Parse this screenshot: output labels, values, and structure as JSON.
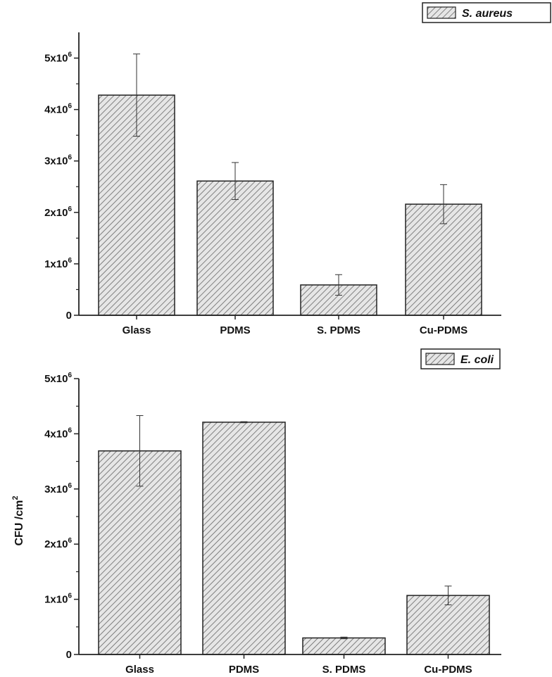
{
  "chart_data": [
    {
      "type": "bar",
      "categories": [
        "Glass",
        "PDMS",
        "S. PDMS",
        "Cu-PDMS"
      ],
      "series": [
        {
          "name": "S. aureus",
          "values": [
            4280000,
            2610000,
            590000,
            2160000
          ],
          "errors": [
            800000,
            360000,
            200000,
            380000
          ]
        }
      ],
      "ylim": [
        0,
        5500000
      ],
      "yticks": [
        {
          "value": 0,
          "label": "0"
        },
        {
          "value": 1000000,
          "mant": "1x10",
          "exp": "6"
        },
        {
          "value": 2000000,
          "mant": "2x10",
          "exp": "6"
        },
        {
          "value": 3000000,
          "mant": "3x10",
          "exp": "6"
        },
        {
          "value": 4000000,
          "mant": "4x10",
          "exp": "6"
        },
        {
          "value": 5000000,
          "mant": "5x10",
          "exp": "6"
        }
      ],
      "legend": "top-right",
      "fill": "hatched",
      "grid": false
    },
    {
      "type": "bar",
      "categories": [
        "Glass",
        "PDMS",
        "S. PDMS",
        "Cu-PDMS"
      ],
      "series": [
        {
          "name": "E. coli",
          "values": [
            3690000,
            4210000,
            300000,
            1070000
          ],
          "errors": [
            640000,
            10000,
            15000,
            170000
          ]
        }
      ],
      "ylim": [
        0,
        5000000
      ],
      "yticks": [
        {
          "value": 0,
          "label": "0"
        },
        {
          "value": 1000000,
          "mant": "1x10",
          "exp": "6"
        },
        {
          "value": 2000000,
          "mant": "2x10",
          "exp": "6"
        },
        {
          "value": 3000000,
          "mant": "3x10",
          "exp": "6"
        },
        {
          "value": 4000000,
          "mant": "4x10",
          "exp": "6"
        },
        {
          "value": 5000000,
          "mant": "5x10",
          "exp": "6"
        }
      ],
      "legend": "top-right",
      "fill": "hatched",
      "grid": false
    }
  ],
  "shared_ylabel": {
    "main": "CFU /cm",
    "sup": "2"
  },
  "colors": {
    "bar_fill": "#d8d8d8",
    "hatch": "#555555",
    "axis": "#222222"
  }
}
